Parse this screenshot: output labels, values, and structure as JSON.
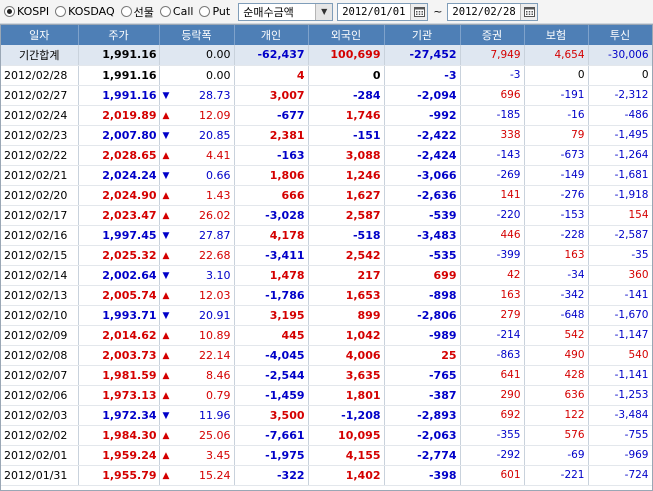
{
  "toolbar": {
    "market_options": [
      {
        "label": "KOSPI",
        "selected": true
      },
      {
        "label": "KOSDAQ",
        "selected": false
      },
      {
        "label": "선물",
        "selected": false
      },
      {
        "label": "Call",
        "selected": false
      },
      {
        "label": "Put",
        "selected": false
      }
    ],
    "metric_select": "순매수금액",
    "start_date": "2012/01/01",
    "tilde": "~",
    "end_date": "2012/02/28"
  },
  "columns": [
    "일자",
    "주가",
    "등락폭",
    "개인",
    "외국인",
    "기관",
    "증권",
    "보험",
    "투신"
  ],
  "rows": [
    {
      "date": "기간합계",
      "price": "1,991.16",
      "dir": "",
      "change": "0.00",
      "ind": "-62,437",
      "for": "100,699",
      "inst": "-27,452",
      "sec": "7,949",
      "ins": "4,654",
      "trust": "-30,006",
      "total": true
    },
    {
      "date": "2012/02/28",
      "price": "1,991.16",
      "dir": "",
      "change": "0.00",
      "ind": "4",
      "for": "0",
      "inst": "-3",
      "sec": "-3",
      "ins": "0",
      "trust": "0"
    },
    {
      "date": "2012/02/27",
      "price": "1,991.16",
      "dir": "down",
      "change": "28.73",
      "ind": "3,007",
      "for": "-284",
      "inst": "-2,094",
      "sec": "696",
      "ins": "-191",
      "trust": "-2,312"
    },
    {
      "date": "2012/02/24",
      "price": "2,019.89",
      "dir": "up",
      "change": "12.09",
      "ind": "-677",
      "for": "1,746",
      "inst": "-992",
      "sec": "-185",
      "ins": "-16",
      "trust": "-486"
    },
    {
      "date": "2012/02/23",
      "price": "2,007.80",
      "dir": "down",
      "change": "20.85",
      "ind": "2,381",
      "for": "-151",
      "inst": "-2,422",
      "sec": "338",
      "ins": "79",
      "trust": "-1,495"
    },
    {
      "date": "2012/02/22",
      "price": "2,028.65",
      "dir": "up",
      "change": "4.41",
      "ind": "-163",
      "for": "3,088",
      "inst": "-2,424",
      "sec": "-143",
      "ins": "-673",
      "trust": "-1,264"
    },
    {
      "date": "2012/02/21",
      "price": "2,024.24",
      "dir": "down",
      "change": "0.66",
      "ind": "1,806",
      "for": "1,246",
      "inst": "-3,066",
      "sec": "-269",
      "ins": "-149",
      "trust": "-1,681"
    },
    {
      "date": "2012/02/20",
      "price": "2,024.90",
      "dir": "up",
      "change": "1.43",
      "ind": "666",
      "for": "1,627",
      "inst": "-2,636",
      "sec": "141",
      "ins": "-276",
      "trust": "-1,918"
    },
    {
      "date": "2012/02/17",
      "price": "2,023.47",
      "dir": "up",
      "change": "26.02",
      "ind": "-3,028",
      "for": "2,587",
      "inst": "-539",
      "sec": "-220",
      "ins": "-153",
      "trust": "154"
    },
    {
      "date": "2012/02/16",
      "price": "1,997.45",
      "dir": "down",
      "change": "27.87",
      "ind": "4,178",
      "for": "-518",
      "inst": "-3,483",
      "sec": "446",
      "ins": "-228",
      "trust": "-2,587"
    },
    {
      "date": "2012/02/15",
      "price": "2,025.32",
      "dir": "up",
      "change": "22.68",
      "ind": "-3,411",
      "for": "2,542",
      "inst": "-535",
      "sec": "-399",
      "ins": "163",
      "trust": "-35"
    },
    {
      "date": "2012/02/14",
      "price": "2,002.64",
      "dir": "down",
      "change": "3.10",
      "ind": "1,478",
      "for": "217",
      "inst": "699",
      "sec": "42",
      "ins": "-34",
      "trust": "360"
    },
    {
      "date": "2012/02/13",
      "price": "2,005.74",
      "dir": "up",
      "change": "12.03",
      "ind": "-1,786",
      "for": "1,653",
      "inst": "-898",
      "sec": "163",
      "ins": "-342",
      "trust": "-141"
    },
    {
      "date": "2012/02/10",
      "price": "1,993.71",
      "dir": "down",
      "change": "20.91",
      "ind": "3,195",
      "for": "899",
      "inst": "-2,806",
      "sec": "279",
      "ins": "-648",
      "trust": "-1,670"
    },
    {
      "date": "2012/02/09",
      "price": "2,014.62",
      "dir": "up",
      "change": "10.89",
      "ind": "445",
      "for": "1,042",
      "inst": "-989",
      "sec": "-214",
      "ins": "542",
      "trust": "-1,147"
    },
    {
      "date": "2012/02/08",
      "price": "2,003.73",
      "dir": "up",
      "change": "22.14",
      "ind": "-4,045",
      "for": "4,006",
      "inst": "25",
      "sec": "-863",
      "ins": "490",
      "trust": "540"
    },
    {
      "date": "2012/02/07",
      "price": "1,981.59",
      "dir": "up",
      "change": "8.46",
      "ind": "-2,544",
      "for": "3,635",
      "inst": "-765",
      "sec": "641",
      "ins": "428",
      "trust": "-1,141"
    },
    {
      "date": "2012/02/06",
      "price": "1,973.13",
      "dir": "up",
      "change": "0.79",
      "ind": "-1,459",
      "for": "1,801",
      "inst": "-387",
      "sec": "290",
      "ins": "636",
      "trust": "-1,253"
    },
    {
      "date": "2012/02/03",
      "price": "1,972.34",
      "dir": "down",
      "change": "11.96",
      "ind": "3,500",
      "for": "-1,208",
      "inst": "-2,893",
      "sec": "692",
      "ins": "122",
      "trust": "-3,484"
    },
    {
      "date": "2012/02/02",
      "price": "1,984.30",
      "dir": "up",
      "change": "25.06",
      "ind": "-7,661",
      "for": "10,095",
      "inst": "-2,063",
      "sec": "-355",
      "ins": "576",
      "trust": "-755"
    },
    {
      "date": "2012/02/01",
      "price": "1,959.24",
      "dir": "up",
      "change": "3.45",
      "ind": "-1,975",
      "for": "4,155",
      "inst": "-2,774",
      "sec": "-292",
      "ins": "-69",
      "trust": "-969"
    },
    {
      "date": "2012/01/31",
      "price": "1,955.79",
      "dir": "up",
      "change": "15.24",
      "ind": "-322",
      "for": "1,402",
      "inst": "-398",
      "sec": "601",
      "ins": "-221",
      "trust": "-724"
    }
  ],
  "colors": {
    "header_bg": "#4e7fb6",
    "up": "#d40000",
    "down": "#0000c8",
    "total_bg": "#dfe7f1"
  }
}
